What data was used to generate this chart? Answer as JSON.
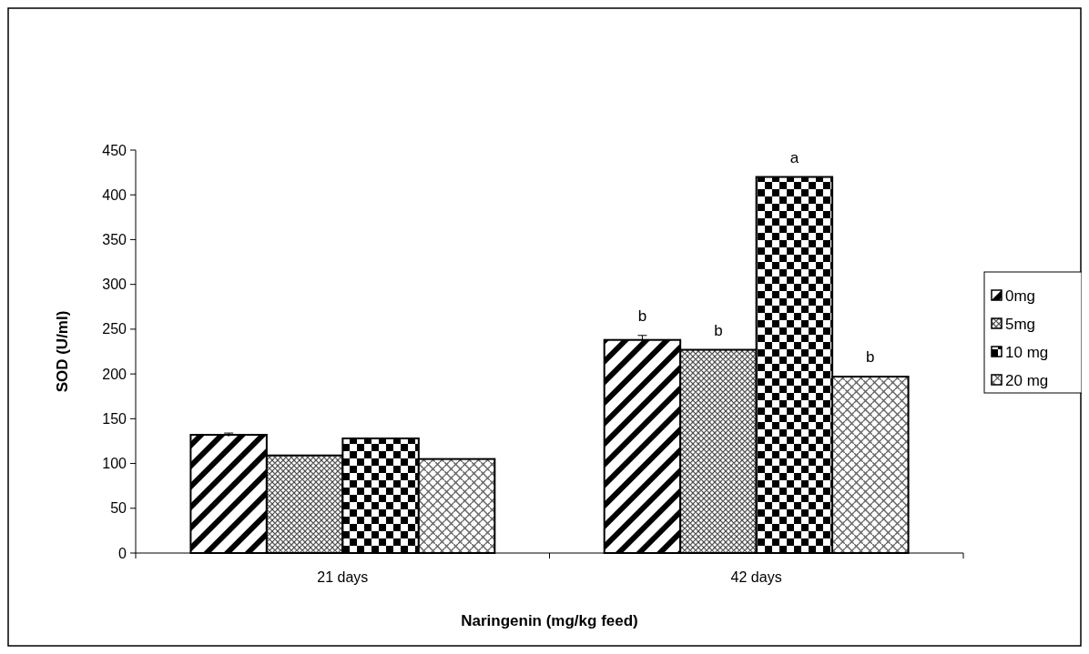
{
  "chart_data": {
    "type": "bar",
    "xlabel": "Naringenin (mg/kg feed)",
    "ylabel": "SOD (U/ml)",
    "categories": [
      "21 days",
      "42 days"
    ],
    "series": [
      {
        "name": "0mg",
        "color": "#000000",
        "values": [
          132,
          238
        ],
        "errors": [
          2,
          5
        ],
        "value_labels": [
          null,
          "b"
        ]
      },
      {
        "name": "5mg",
        "color": "#000000",
        "values": [
          109,
          227
        ],
        "value_labels": [
          null,
          "b"
        ]
      },
      {
        "name": "10 mg",
        "color": "#000000",
        "values": [
          128,
          420
        ],
        "value_labels": [
          null,
          "a"
        ]
      },
      {
        "name": "20 mg",
        "color": "#000000",
        "values": [
          105,
          197
        ],
        "value_labels": [
          null,
          "b"
        ]
      }
    ],
    "ylim": [
      0,
      450
    ],
    "yticks": [
      0,
      50,
      100,
      150,
      200,
      250,
      300,
      350,
      400,
      450
    ],
    "grid": false,
    "legend": "right"
  }
}
